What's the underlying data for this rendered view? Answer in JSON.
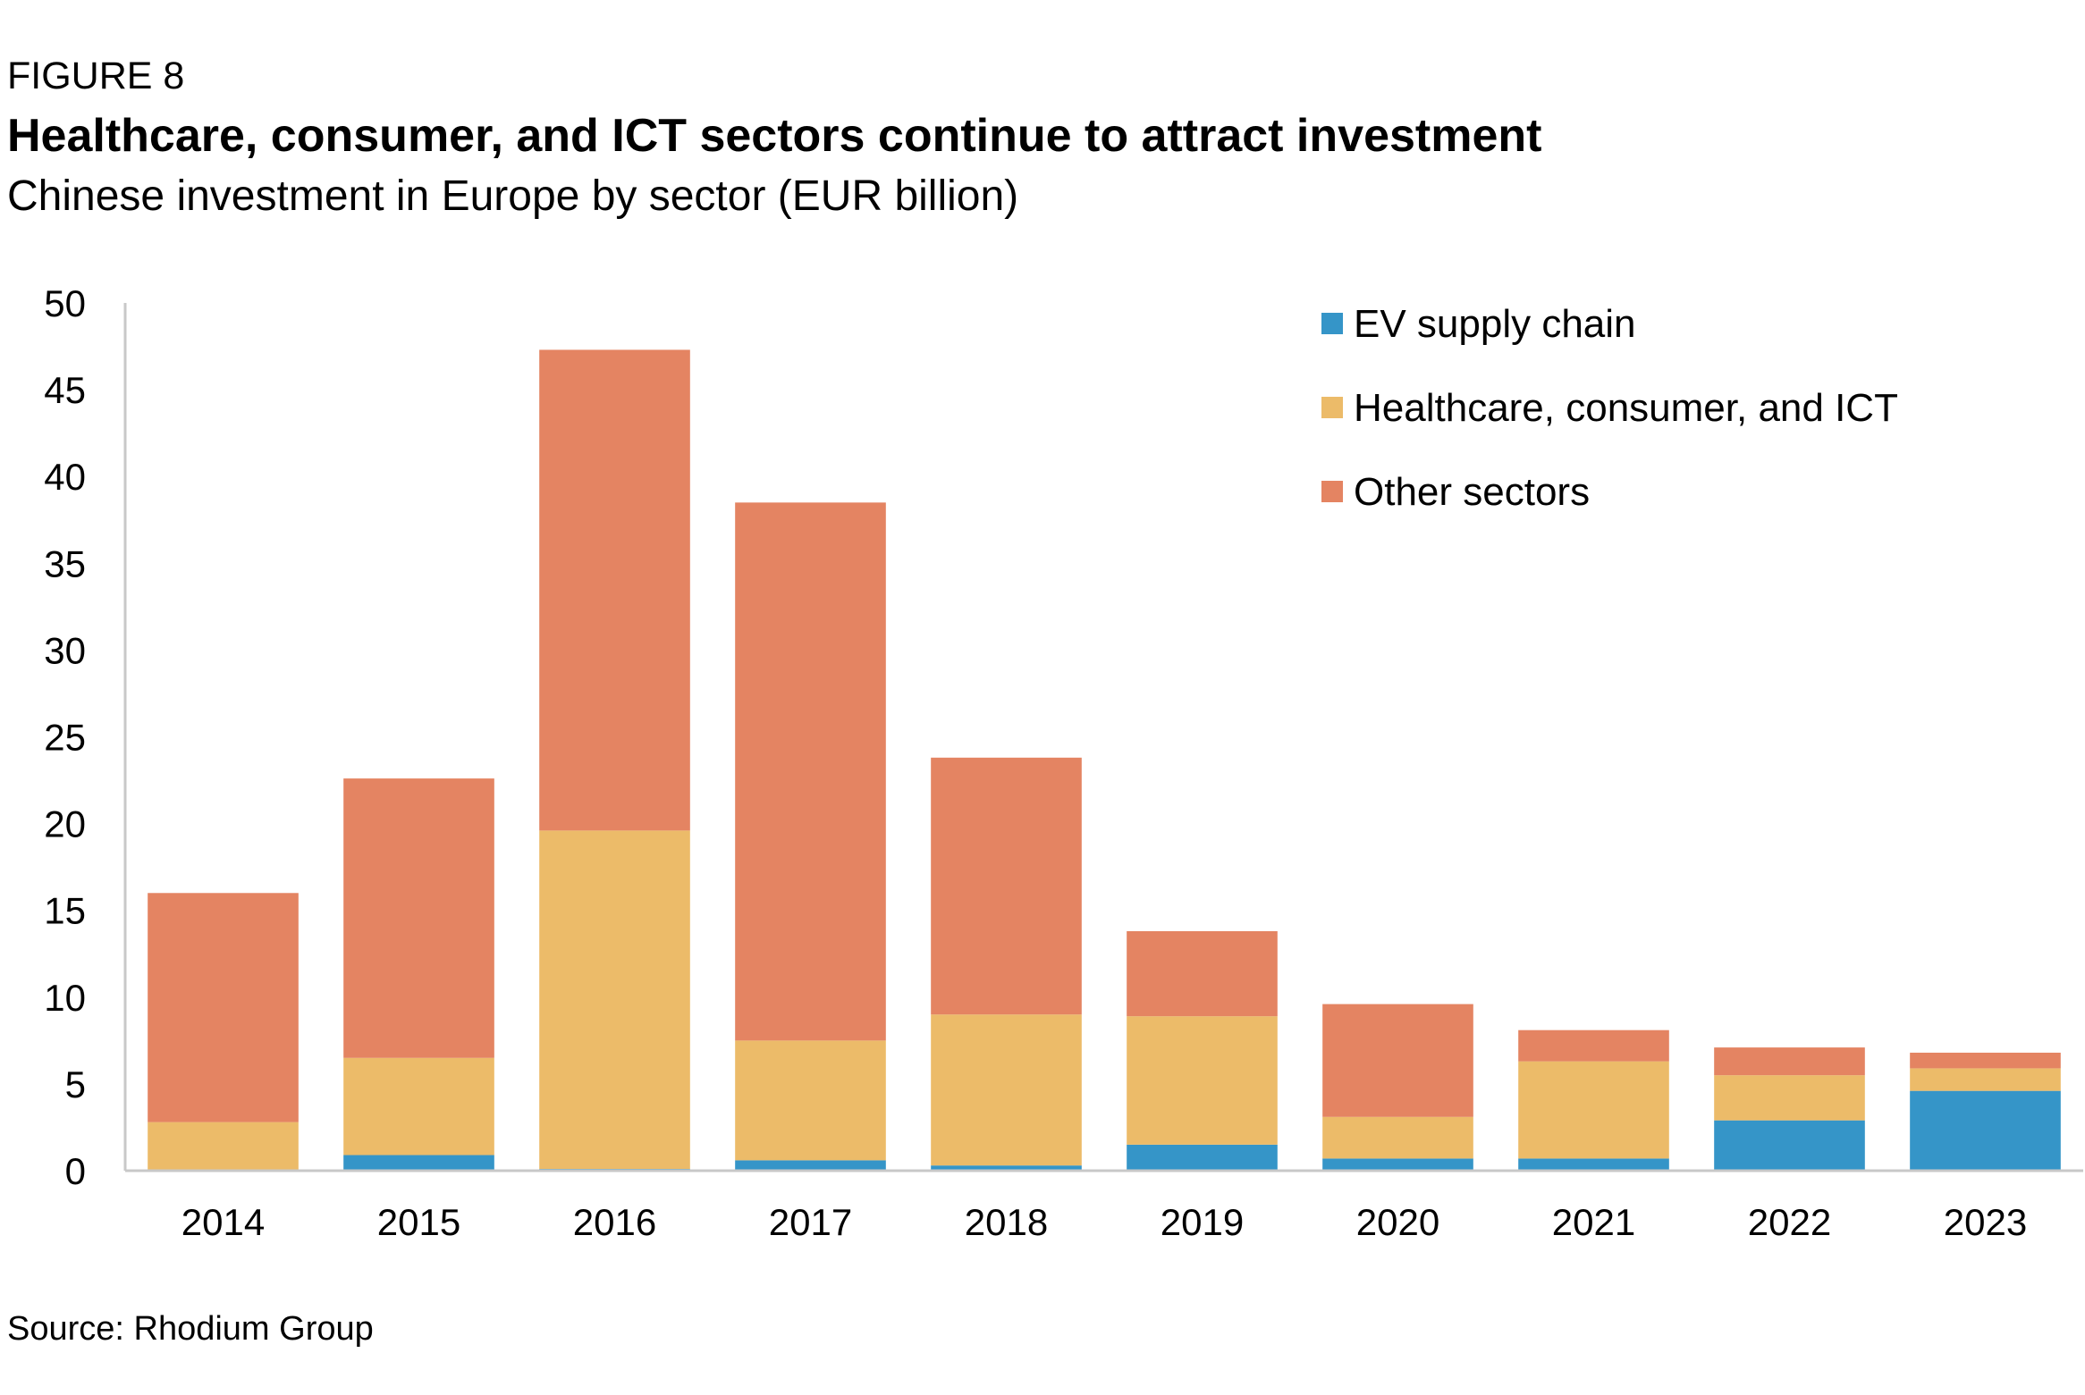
{
  "header": {
    "figure_label": "FIGURE 8",
    "title": "Healthcare, consumer, and ICT sectors continue to attract investment",
    "subtitle": "Chinese investment in Europe by sector (EUR billion)"
  },
  "footer": {
    "source": "Source: Rhodium Group"
  },
  "chart_data": {
    "type": "bar",
    "stacked": true,
    "title": "Healthcare, consumer, and ICT sectors continue to attract investment",
    "subtitle": "Chinese investment in Europe by sector (EUR billion)",
    "xlabel": "",
    "ylabel": "",
    "ylim": [
      0,
      50
    ],
    "yticks": [
      0,
      5,
      10,
      15,
      20,
      25,
      30,
      35,
      40,
      45,
      50
    ],
    "grid": false,
    "legend_position": "top-right",
    "categories": [
      "2014",
      "2015",
      "2016",
      "2017",
      "2018",
      "2019",
      "2020",
      "2021",
      "2022",
      "2023"
    ],
    "series": [
      {
        "name": "EV supply chain",
        "color": "#3595C8",
        "values": [
          0.0,
          0.9,
          0.1,
          0.6,
          0.3,
          1.5,
          0.7,
          0.7,
          2.9,
          4.6
        ]
      },
      {
        "name": "Healthcare, consumer, and ICT",
        "color": "#ECBB69",
        "values": [
          2.8,
          5.6,
          19.5,
          6.9,
          8.7,
          7.4,
          2.4,
          5.6,
          2.6,
          1.3
        ]
      },
      {
        "name": "Other sectors",
        "color": "#E48462",
        "values": [
          13.2,
          16.1,
          27.7,
          31.0,
          14.8,
          4.9,
          6.5,
          1.8,
          1.6,
          0.9
        ]
      }
    ]
  }
}
